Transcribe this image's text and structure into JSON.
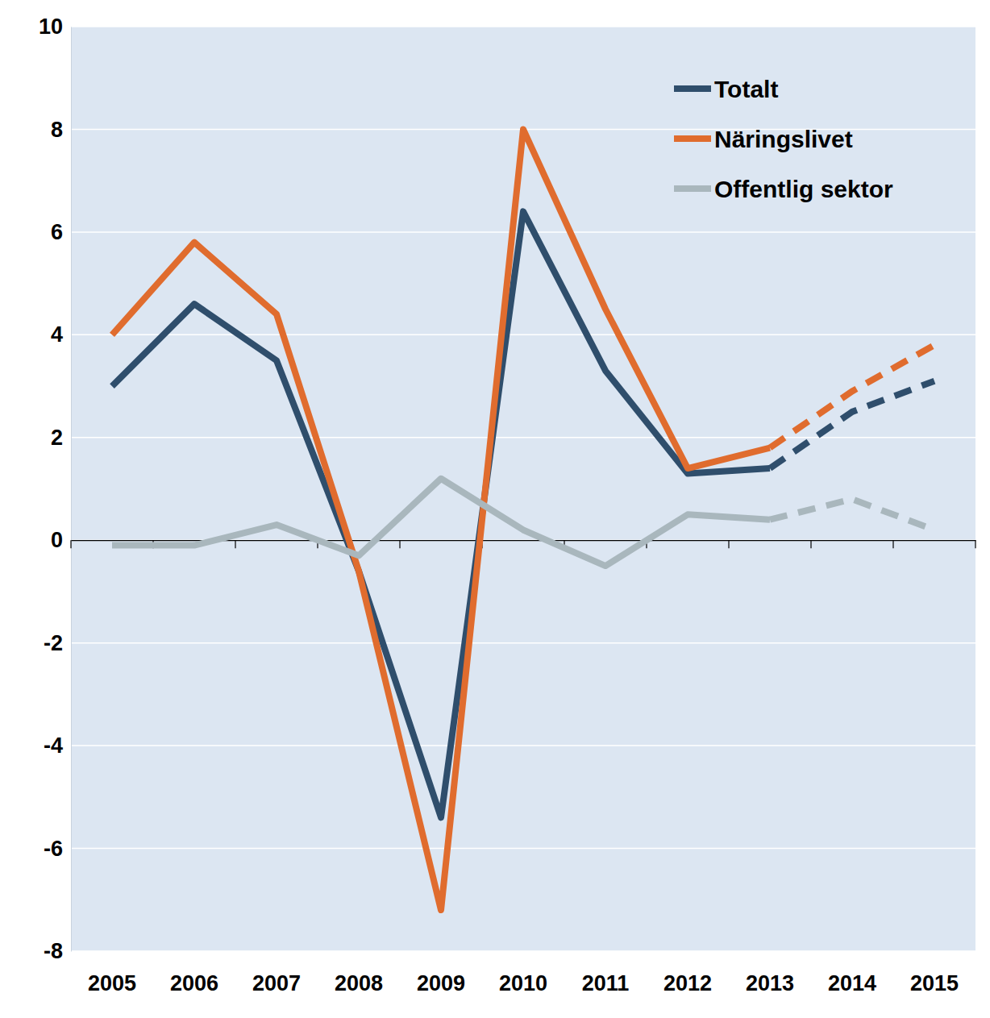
{
  "chart_data": {
    "type": "line",
    "categories": [
      "2005",
      "2006",
      "2007",
      "2008",
      "2009",
      "2010",
      "2011",
      "2012",
      "2013",
      "2014",
      "2015"
    ],
    "series": [
      {
        "name": "Totalt",
        "color": "#2f4e6c",
        "line_style": "solid",
        "values": [
          3.0,
          4.6,
          3.5,
          -0.6,
          -5.4,
          6.4,
          3.3,
          1.3,
          1.4,
          null,
          null
        ],
        "forecast": [
          null,
          null,
          null,
          null,
          null,
          null,
          null,
          null,
          null,
          2.5,
          3.1
        ]
      },
      {
        "name": "Näringslivet",
        "color": "#e06c2e",
        "line_style": "solid",
        "values": [
          4.0,
          5.8,
          4.4,
          -0.6,
          -7.2,
          8.0,
          4.5,
          1.4,
          1.8,
          null,
          null
        ],
        "forecast": [
          null,
          null,
          null,
          null,
          null,
          null,
          null,
          null,
          null,
          2.9,
          3.8
        ]
      },
      {
        "name": "Offentlig sektor",
        "color": "#a9b7bd",
        "line_style": "solid",
        "values": [
          -0.1,
          -0.1,
          0.3,
          -0.3,
          1.2,
          0.2,
          -0.5,
          0.5,
          0.4,
          null,
          null
        ],
        "forecast": [
          null,
          null,
          null,
          null,
          null,
          null,
          null,
          null,
          null,
          0.8,
          0.2
        ]
      }
    ],
    "ylim": [
      -8,
      10
    ],
    "yticks": [
      -8,
      -6,
      -4,
      -2,
      0,
      2,
      4,
      6,
      8,
      10
    ],
    "grid": true,
    "legend": "top-right"
  }
}
